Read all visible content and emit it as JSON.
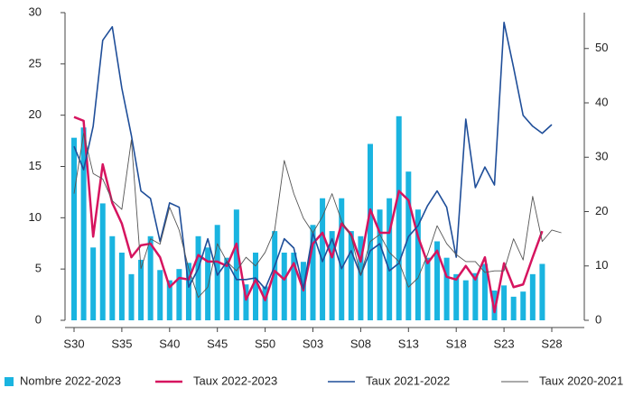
{
  "chart_data": {
    "type": "bar_line",
    "categories": [
      "S30",
      null,
      null,
      null,
      null,
      "S35",
      null,
      null,
      null,
      null,
      "S40",
      null,
      null,
      null,
      null,
      "S45",
      null,
      null,
      null,
      null,
      "S50",
      null,
      null,
      null,
      null,
      "S03",
      null,
      null,
      null,
      null,
      "S08",
      null,
      null,
      null,
      null,
      "S13",
      null,
      null,
      null,
      null,
      "S18",
      null,
      null,
      null,
      null,
      "S23",
      null,
      null,
      null,
      null,
      "S28",
      null
    ],
    "series": [
      {
        "name": "Nombre 2022-2023",
        "color": "#1ab4e0",
        "kind": "bar",
        "axis": "y",
        "values": [
          17.8,
          18.8,
          7.1,
          11.4,
          8.2,
          6.6,
          4.5,
          5.9,
          8.2,
          4.9,
          3.9,
          5.0,
          5.6,
          8.2,
          7.1,
          9.3,
          6.1,
          10.8,
          3.5,
          6.6,
          3.3,
          8.7,
          6.6,
          6.6,
          5.7,
          9.3,
          11.9,
          8.7,
          11.9,
          8.7,
          8.2,
          17.2,
          10.8,
          11.9,
          19.9,
          14.5,
          10.8,
          6.1,
          7.7,
          6.1,
          4.5,
          3.9,
          4.6,
          5.5,
          2.9,
          3.4,
          2.3,
          2.8,
          4.5,
          5.5,
          null,
          null
        ]
      },
      {
        "name": "Taux 2022-2023",
        "color": "#d6145f",
        "kind": "line",
        "axis": "y2",
        "values": [
          37.4,
          36.7,
          15.4,
          28.7,
          21.6,
          17.8,
          11.6,
          13.8,
          14.1,
          11.6,
          6.1,
          7.8,
          7.5,
          12,
          10.8,
          10.8,
          10,
          14.1,
          3.8,
          7.5,
          3.7,
          9.1,
          7.5,
          10.5,
          5.5,
          14.1,
          16.1,
          11.6,
          17.8,
          15.8,
          10.8,
          20.4,
          16.1,
          16.1,
          23.8,
          22.1,
          15.4,
          10.5,
          12.8,
          8,
          7.5,
          10,
          7.5,
          11.6,
          1.5,
          10.5,
          6.1,
          6.6,
          11.6,
          16.4,
          null,
          null
        ]
      },
      {
        "name": "Taux 2021-2022",
        "color": "#1f4e99",
        "kind": "line",
        "axis": "y2",
        "values": [
          32,
          27.7,
          35.7,
          51.5,
          54,
          42.7,
          34,
          23.8,
          22.4,
          14.5,
          21.6,
          20.8,
          6.1,
          9.5,
          15,
          8.3,
          10.8,
          7.5,
          7.5,
          7.8,
          5.8,
          10,
          15,
          13.3,
          5.8,
          16.1,
          10.8,
          15,
          9.5,
          12.8,
          8.3,
          12.8,
          14.1,
          9.1,
          10.5,
          15.4,
          17.4,
          21.1,
          23.8,
          20.8,
          11.6,
          37,
          24.4,
          28.2,
          24.9,
          54.8,
          46.5,
          37.7,
          35.7,
          34.4,
          36,
          null
        ]
      },
      {
        "name": "Taux 2020-2021",
        "color": "#555555",
        "kind": "line",
        "axis": "y2",
        "values": [
          23.3,
          34.4,
          27,
          26,
          22,
          20.4,
          33.2,
          9.5,
          15,
          14,
          20.8,
          16.6,
          9.5,
          4.2,
          6.1,
          14.1,
          10.8,
          9.1,
          11.6,
          10,
          12.5,
          16.6,
          29.4,
          23.3,
          18.8,
          16.1,
          19.1,
          23.3,
          18.3,
          15.4,
          8.3,
          14.5,
          15.8,
          12.5,
          10.8,
          6.1,
          7.8,
          12.1,
          17.4,
          14.1,
          12.1,
          10.8,
          10.8,
          8.8,
          9.1,
          9.1,
          15,
          11.1,
          22.8,
          14.5,
          16.6,
          16.1
        ]
      }
    ],
    "ylim": [
      0,
      30
    ],
    "yticks": [
      0,
      5,
      10,
      15,
      20,
      25,
      30
    ],
    "y2lim": [
      0,
      56.6
    ],
    "y2ticks": [
      0,
      10,
      20,
      30,
      40,
      50
    ]
  }
}
